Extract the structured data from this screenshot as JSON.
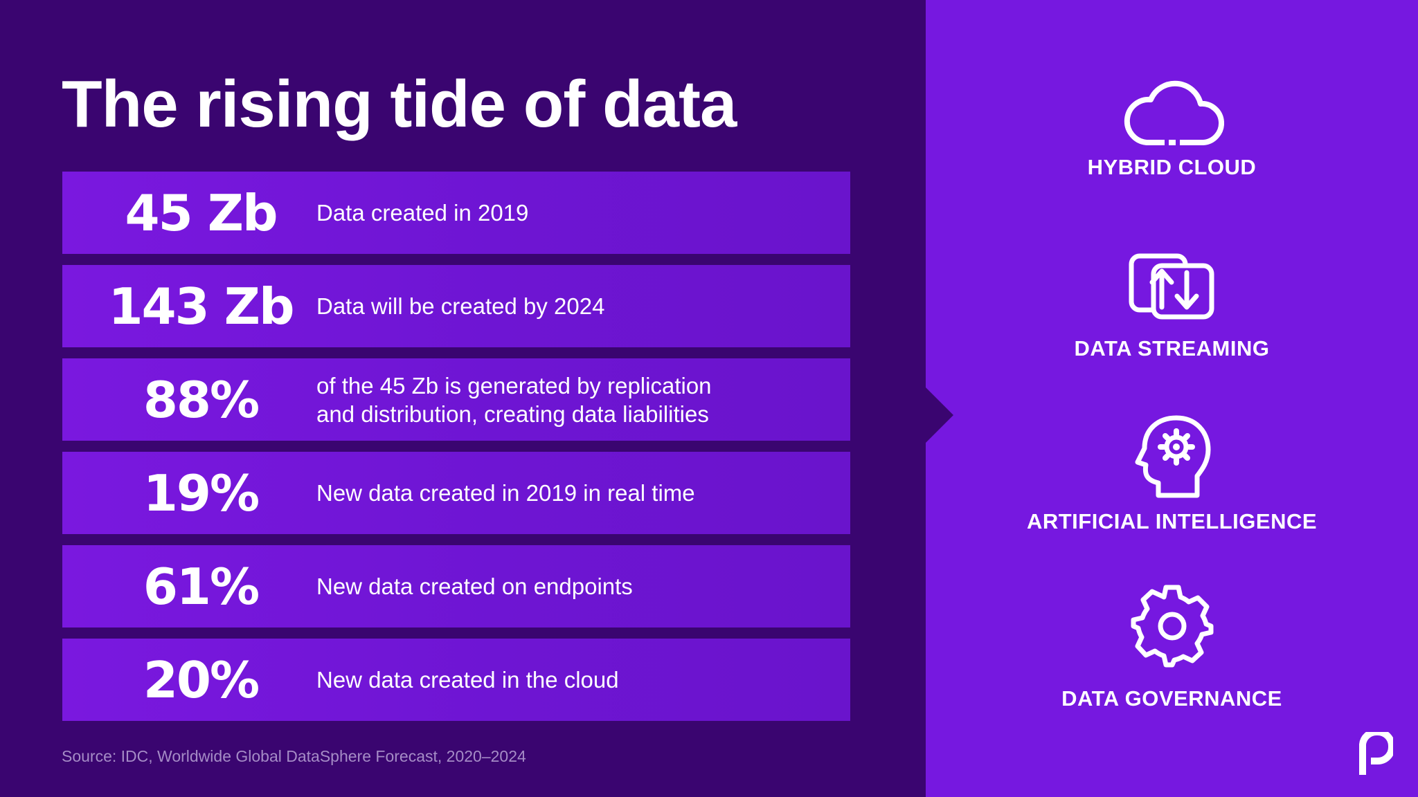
{
  "title": "The rising tide of data",
  "stats": [
    {
      "value": "45 Zb",
      "description": "Data created in 2019"
    },
    {
      "value": "143 Zb",
      "description": "Data will be created  by 2024"
    },
    {
      "value": "88%",
      "description": "of the 45 Zb is generated by replication\nand distribution, creating data liabilities"
    },
    {
      "value": "19%",
      "description": "New data created in 2019 in real time"
    },
    {
      "value": "61%",
      "description": "New data created on endpoints"
    },
    {
      "value": "20%",
      "description": "New data created in the cloud"
    }
  ],
  "source": "Source: IDC, Worldwide Global DataSphere Forecast, 2020–2024",
  "features": [
    {
      "label": "HYBRID CLOUD",
      "icon": "cloud-icon"
    },
    {
      "label": "DATA STREAMING",
      "icon": "data-streaming-icon"
    },
    {
      "label": "ARTIFICIAL INTELLIGENCE",
      "icon": "ai-head-gear-icon"
    },
    {
      "label": "DATA GOVERNANCE",
      "icon": "gear-icon"
    }
  ],
  "colors": {
    "left_background": "#3a0570",
    "row_background": "#7a18df",
    "right_background": "#7618e0",
    "text": "#ffffff",
    "source_text": "#a58cc6"
  },
  "logo": "brand-logo"
}
